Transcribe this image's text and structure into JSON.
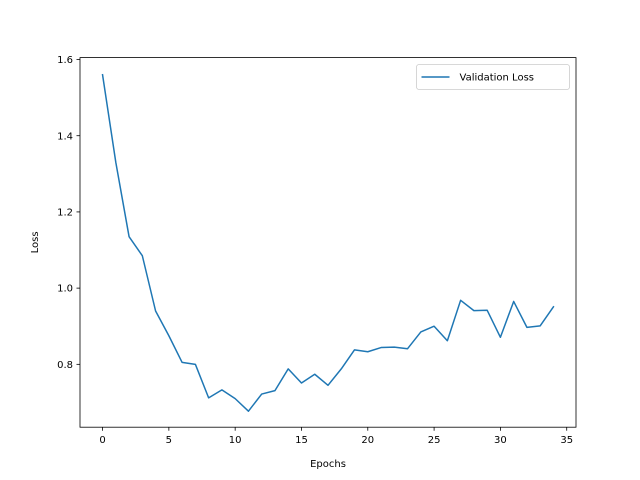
{
  "chart_data": {
    "type": "line",
    "title": "",
    "xlabel": "Epochs",
    "ylabel": "Loss",
    "xlim": [
      -1.7,
      35.7
    ],
    "ylim": [
      0.635,
      1.605
    ],
    "xticks": [
      0,
      5,
      10,
      15,
      20,
      25,
      30,
      35
    ],
    "yticks": [
      0.8,
      1.0,
      1.2,
      1.4,
      1.6
    ],
    "xtick_labels": [
      "0",
      "5",
      "10",
      "15",
      "20",
      "25",
      "30",
      "35"
    ],
    "ytick_labels": [
      "0.8",
      "1.0",
      "1.2",
      "1.4",
      "1.6"
    ],
    "grid": false,
    "legend_position": "top-right",
    "series": [
      {
        "name": "Validation Loss",
        "color": "#1f77b4",
        "x": [
          0,
          1,
          2,
          3,
          4,
          5,
          6,
          7,
          8,
          9,
          10,
          11,
          12,
          13,
          14,
          15,
          16,
          17,
          18,
          19,
          20,
          21,
          22,
          23,
          24,
          25,
          26,
          27,
          28,
          29,
          30,
          31,
          32,
          33,
          34
        ],
        "y": [
          1.56,
          1.33,
          1.135,
          1.085,
          0.94,
          0.875,
          0.805,
          0.8,
          0.712,
          0.733,
          0.71,
          0.677,
          0.722,
          0.731,
          0.788,
          0.751,
          0.774,
          0.745,
          0.788,
          0.838,
          0.833,
          0.844,
          0.845,
          0.841,
          0.885,
          0.9,
          0.862,
          0.968,
          0.941,
          0.942,
          0.871,
          0.965,
          0.897,
          0.901,
          0.951
        ]
      }
    ]
  }
}
